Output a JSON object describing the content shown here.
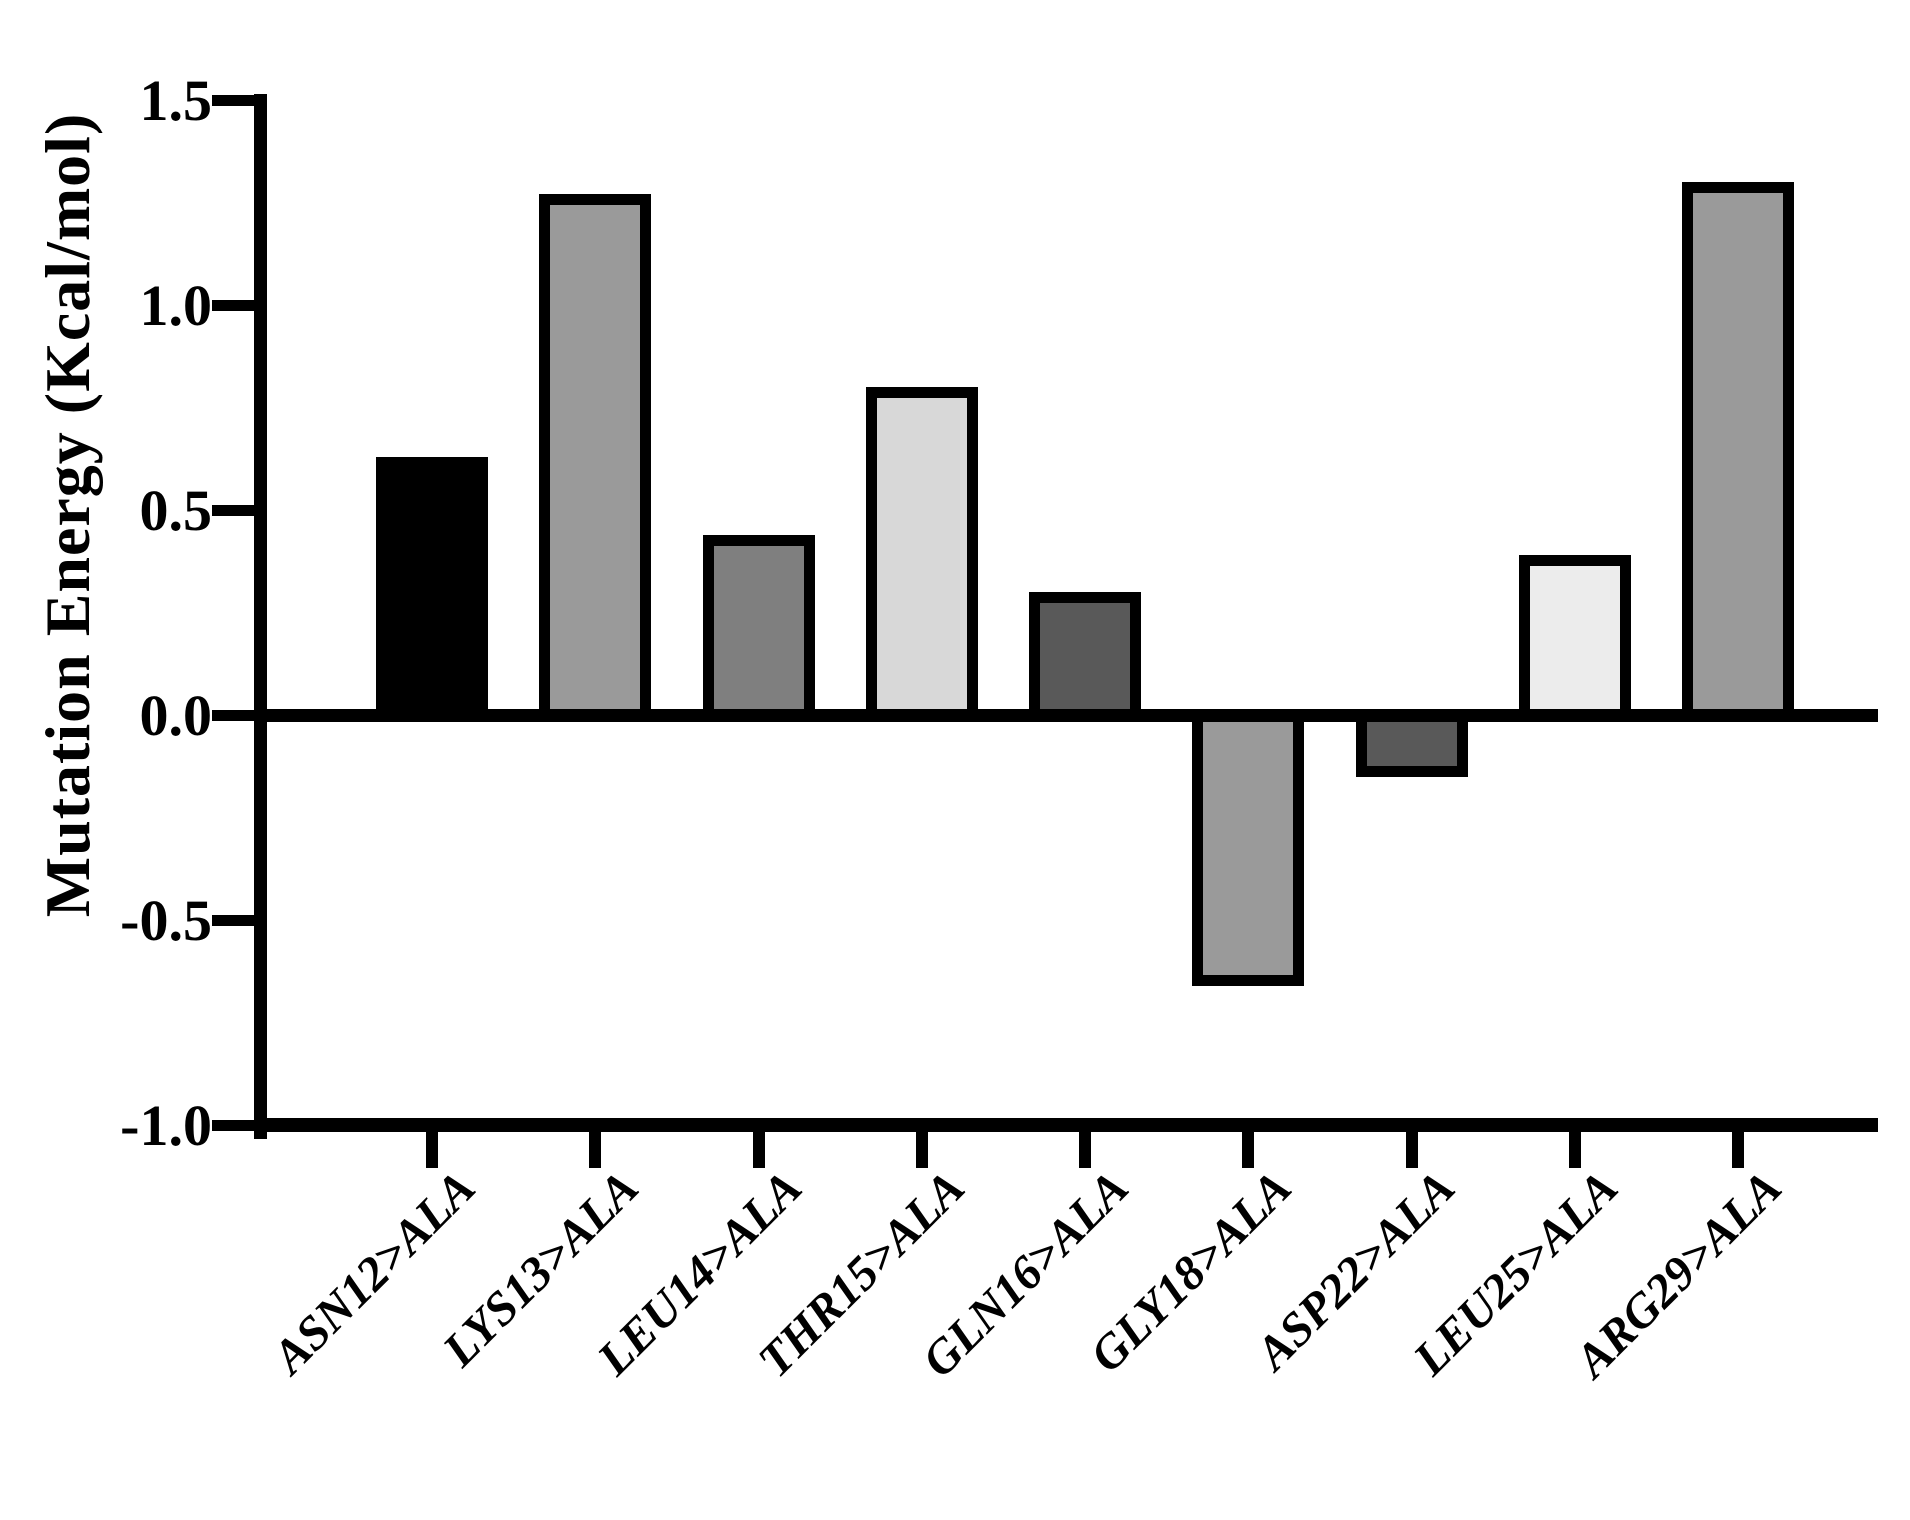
{
  "figure": {
    "background_color": "#ffffff",
    "axis_color": "#000000"
  },
  "chart_data": {
    "type": "bar",
    "title": "",
    "xlabel": "",
    "ylabel": "Mutation Energy (Kcal/mol)",
    "categories": [
      "ASN12>ALA",
      "LYS13>ALA",
      "LEU14>ALA",
      "THR15>ALA",
      "GLN16>ALA",
      "GLY18>ALA",
      "ASP22>ALA",
      "LEU25>ALA",
      "ARG29>ALA"
    ],
    "values": [
      0.63,
      1.27,
      0.44,
      0.8,
      0.3,
      -0.66,
      -0.15,
      0.39,
      1.3
    ],
    "bar_fill_colors": [
      "#000000",
      "#9a9a9a",
      "#7f7f7f",
      "#d8d8d8",
      "#595959",
      "#9a9a9a",
      "#595959",
      "#ececec",
      "#9a9a9a"
    ],
    "bar_outline_color": "#000000",
    "ylim": [
      -1.0,
      1.5
    ],
    "yticks": [
      1.5,
      1.0,
      0.5,
      0.0,
      -0.5,
      -1.0
    ],
    "ytick_labels": [
      "1.5",
      "1.0",
      "0.5",
      "0.0",
      "-0.5",
      "-1.0"
    ],
    "grid": false,
    "legend": false,
    "baseline_value": 0.0
  }
}
